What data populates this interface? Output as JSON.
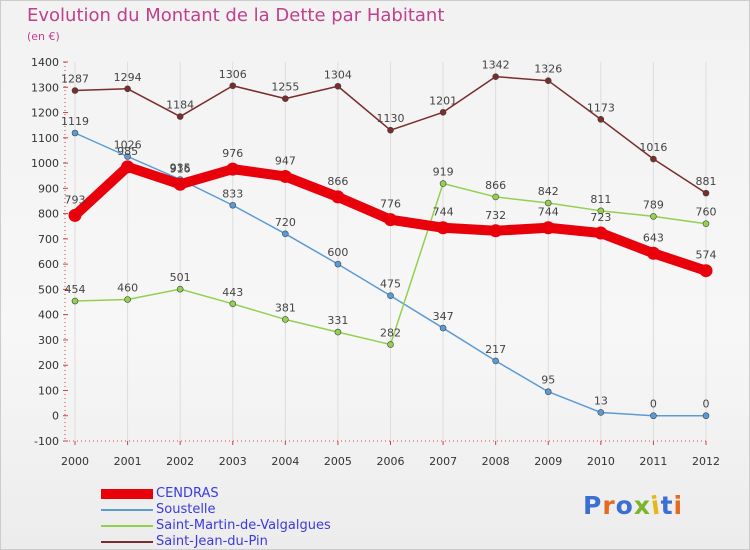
{
  "title": "Evolution du Montant de la Dette par Habitant",
  "subtitle": "(en €)",
  "logo": {
    "text": "Proxiti",
    "colors": [
      "#3b6fd1",
      "#e46b1d",
      "#3b6fd1",
      "#7ab52d",
      "#e4b81d",
      "#3b6fd1",
      "#e46b1d"
    ]
  },
  "chart_data": {
    "type": "line",
    "title": "Evolution du Montant de la Dette par Habitant",
    "subtitle": "(en €)",
    "x": [
      "2000",
      "2001",
      "2002",
      "2003",
      "2004",
      "2005",
      "2006",
      "2007",
      "2008",
      "2009",
      "2010",
      "2011",
      "2012"
    ],
    "ylim": [
      -100,
      1400
    ],
    "yticks": [
      -100,
      0,
      100,
      200,
      300,
      400,
      500,
      600,
      700,
      800,
      900,
      1000,
      1100,
      1200,
      1300,
      1400
    ],
    "grid": "vertical",
    "legend_position": "bottom-left",
    "series": [
      {
        "name": "CENDRAS",
        "color": "#e8000b",
        "values": [
          793,
          985,
          916,
          976,
          947,
          866,
          776,
          744,
          732,
          744,
          723,
          643,
          574
        ]
      },
      {
        "name": "Soustelle",
        "color": "#5b9bd5",
        "values": [
          1119,
          1026,
          935,
          833,
          720,
          600,
          475,
          347,
          217,
          95,
          13,
          0,
          0
        ]
      },
      {
        "name": "Saint-Martin-de-Valgalgues",
        "color": "#92d050",
        "values": [
          454,
          460,
          501,
          443,
          381,
          331,
          282,
          919,
          866,
          842,
          811,
          789,
          760
        ]
      },
      {
        "name": "Saint-Jean-du-Pin",
        "color": "#7b2c2c",
        "values": [
          1287,
          1294,
          1184,
          1306,
          1255,
          1304,
          1130,
          1201,
          1342,
          1326,
          1173,
          1016,
          881
        ]
      }
    ]
  }
}
